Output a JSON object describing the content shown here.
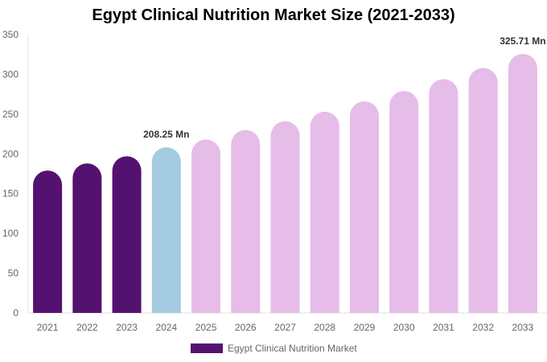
{
  "chart_data": {
    "type": "bar",
    "title": "Egypt Clinical Nutrition Market Size (2021-2033)",
    "categories": [
      "2021",
      "2022",
      "2023",
      "2024",
      "2025",
      "2026",
      "2027",
      "2028",
      "2029",
      "2030",
      "2031",
      "2032",
      "2033"
    ],
    "series": [
      {
        "name": "Egypt Clinical Nutrition Market",
        "values": [
          179,
          188,
          197,
          208.25,
          218,
          230,
          241,
          253,
          266,
          279,
          294,
          308,
          325.71
        ]
      }
    ],
    "data_labels": [
      {
        "category": "2024",
        "text": "208.25 Mn"
      },
      {
        "category": "2033",
        "text": "325.71 Mn"
      }
    ],
    "ylim": [
      0,
      350
    ],
    "yticks": [
      0,
      50,
      100,
      150,
      200,
      250,
      300,
      350
    ],
    "xlabel": "",
    "ylabel": "",
    "grid": false,
    "legend_position": "bottom",
    "colors": {
      "historical": "#541270",
      "current": "#a4cbe0",
      "forecast": "#e6bce8"
    }
  }
}
